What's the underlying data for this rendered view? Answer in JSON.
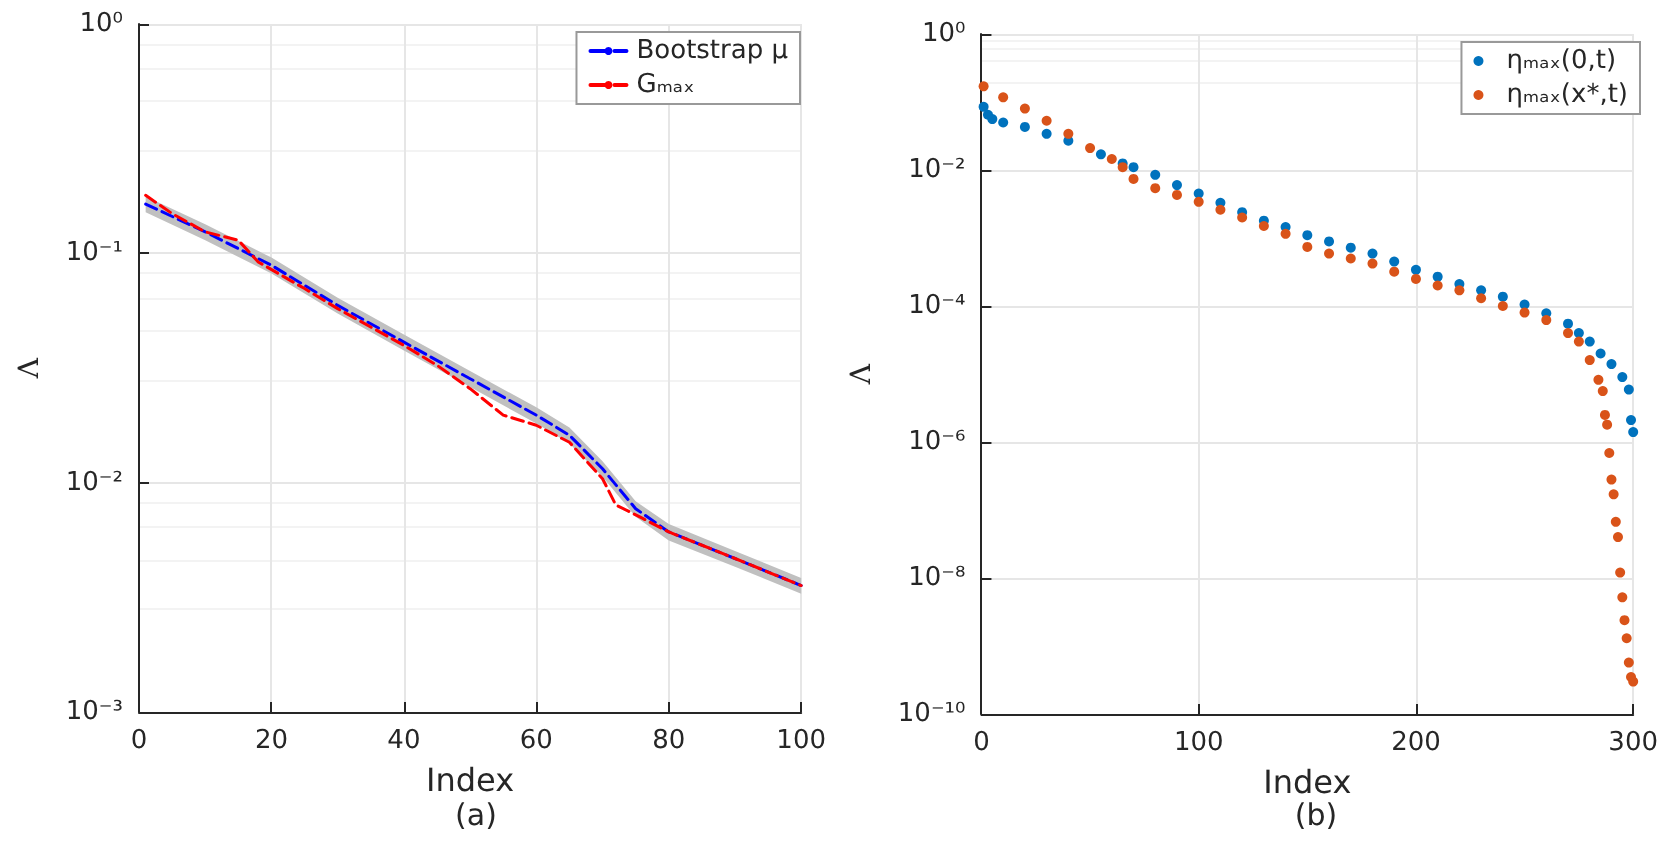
{
  "chart_data": [
    {
      "type": "line",
      "xlabel": "Index",
      "ylabel": "Λ",
      "annotations": [
        "(a)"
      ],
      "log": "y",
      "grid": true,
      "legend": "top right",
      "marker": "none",
      "line_style": "dashed",
      "xlim": [
        0,
        100
      ],
      "xticks": [
        0,
        20,
        40,
        60,
        80,
        100
      ],
      "ylim": [
        0.001,
        1
      ],
      "yticks": [
        {
          "value": 0.001,
          "label": "10⁻³"
        },
        {
          "value": 0.01,
          "label": "10⁻²"
        },
        {
          "value": 0.1,
          "label": "10⁻¹"
        },
        {
          "value": 1,
          "label": "10⁰"
        }
      ],
      "series": [
        {
          "name": "Bootstrap μ",
          "color": "#0000ff",
          "x": [
            1,
            10,
            20,
            30,
            40,
            50,
            60,
            65,
            70,
            75,
            80,
            90,
            100
          ],
          "values": [
            0.164,
            0.124,
            0.0887,
            0.0593,
            0.041,
            0.0284,
            0.0197,
            0.0161,
            0.0115,
            0.0077,
            0.0061,
            0.00467,
            0.00356
          ],
          "lower": [
            0.151,
            0.114,
            0.0816,
            0.0546,
            0.0377,
            0.0261,
            0.0181,
            0.0148,
            0.0106,
            0.0071,
            0.0056,
            0.0043,
            0.00328
          ],
          "upper": [
            0.177,
            0.134,
            0.0958,
            0.064,
            0.0443,
            0.0307,
            0.0213,
            0.0174,
            0.0124,
            0.0083,
            0.0066,
            0.00504,
            0.00384
          ]
        },
        {
          "name": "Gₘₐₓ",
          "color": "#ff0000",
          "x": [
            1,
            5,
            10,
            15,
            18,
            25,
            30,
            40,
            45,
            50,
            55,
            60,
            65,
            70,
            72,
            76,
            80,
            90,
            100
          ],
          "values": [
            0.179,
            0.149,
            0.124,
            0.114,
            0.0917,
            0.0702,
            0.0574,
            0.0397,
            0.0325,
            0.0257,
            0.0197,
            0.0178,
            0.015,
            0.0104,
            0.008,
            0.007,
            0.0061,
            0.00467,
            0.00356
          ]
        }
      ]
    },
    {
      "type": "scatter",
      "xlabel": "Index",
      "ylabel": "Λ",
      "annotations": [
        "(b)"
      ],
      "log": "y",
      "grid": true,
      "legend": "top right",
      "marker": "circle",
      "xlim": [
        0,
        300
      ],
      "xticks": [
        0,
        100,
        200,
        300
      ],
      "ylim": [
        1e-10,
        1
      ],
      "yticks": [
        {
          "value": 1e-10,
          "label": "10⁻¹⁰"
        },
        {
          "value": 1e-08,
          "label": "10⁻⁸"
        },
        {
          "value": 1e-06,
          "label": "10⁻⁶"
        },
        {
          "value": 0.0001,
          "label": "10⁻⁴"
        },
        {
          "value": 0.01,
          "label": "10⁻²"
        },
        {
          "value": 1,
          "label": "10⁰"
        }
      ],
      "series": [
        {
          "name": "ηₘₐₓ(0,t)",
          "color": "#0072bd",
          "x": [
            1,
            3,
            5,
            10,
            20,
            30,
            40,
            55,
            65,
            70,
            80,
            90,
            100,
            110,
            120,
            130,
            140,
            150,
            160,
            170,
            180,
            190,
            200,
            210,
            220,
            230,
            240,
            250,
            260,
            270,
            275,
            280,
            285,
            290,
            295,
            298,
            299,
            300
          ],
          "values": [
            0.085,
            0.065,
            0.056,
            0.05,
            0.043,
            0.034,
            0.027,
            0.017,
            0.0125,
            0.011,
            0.0085,
            0.006,
            0.0045,
            0.0033,
            0.0024,
            0.0018,
            0.00145,
            0.0011,
            0.00089,
            0.00072,
            0.00059,
            0.00045,
            0.00034,
            0.00027,
            0.00021,
            0.00017,
            0.000137,
            0.000105,
            7.8e-05,
            5.5e-05,
            4e-05,
            3e-05,
            2e-05,
            1.4e-05,
            9e-06,
            5.9e-06,
            2.1e-06,
            1.4e-06
          ]
        },
        {
          "name": "ηₘₐₓ(x*,t)",
          "color": "#d95319",
          "x": [
            1,
            10,
            20,
            30,
            40,
            50,
            60,
            65,
            70,
            80,
            90,
            100,
            110,
            120,
            130,
            140,
            150,
            160,
            170,
            180,
            190,
            200,
            210,
            220,
            230,
            240,
            250,
            260,
            270,
            275,
            280,
            284,
            286,
            287,
            288,
            289,
            290,
            291,
            292,
            293,
            294,
            295,
            296,
            297,
            298,
            299,
            300
          ],
          "values": [
            0.17,
            0.117,
            0.08,
            0.053,
            0.034,
            0.021,
            0.0145,
            0.011,
            0.0074,
            0.0054,
            0.0043,
            0.0034,
            0.0026,
            0.002,
            0.0015,
            0.00115,
            0.00074,
            0.00059,
            0.0005,
            0.00042,
            0.00032,
            0.00025,
            0.0002,
            0.00017,
            0.00013,
            0.0001,
            8e-05,
            6.2e-05,
            4e-05,
            3e-05,
            1.6e-05,
            8.2e-06,
            5.6e-06,
            2.5e-06,
            1.8e-06,
            6.9e-07,
            2.8e-07,
            1.7e-07,
            6.7e-08,
            4e-08,
            1.2e-08,
            5.2e-09,
            2.4e-09,
            1.3e-09,
            5.7e-10,
            3.5e-10,
            3e-10
          ]
        }
      ]
    }
  ]
}
